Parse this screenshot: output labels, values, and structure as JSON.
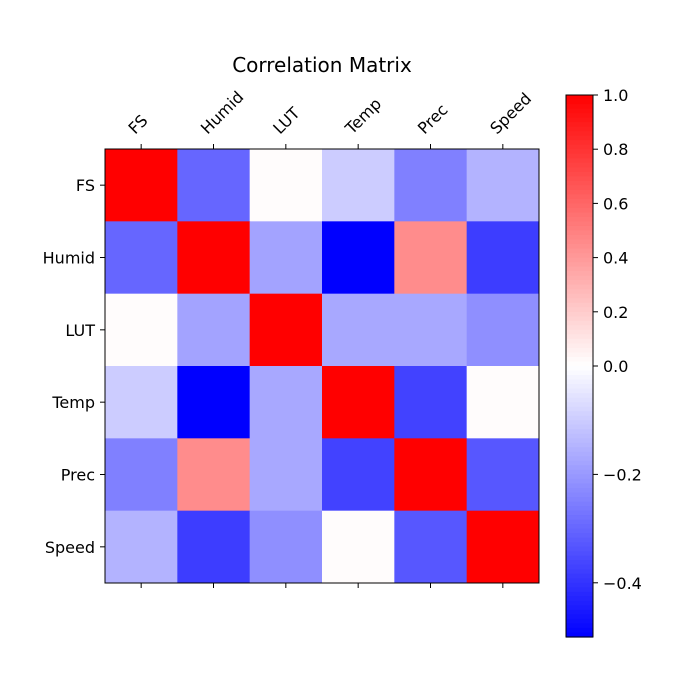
{
  "chart_data": {
    "type": "heatmap",
    "title": "Correlation Matrix",
    "x_labels": [
      "FS",
      "Humid",
      "LUT",
      "Temp",
      "Prec",
      "Speed"
    ],
    "y_labels": [
      "FS",
      "Humid",
      "LUT",
      "Temp",
      "Prec",
      "Speed"
    ],
    "values": [
      [
        1.0,
        -0.3,
        0.01,
        -0.1,
        -0.25,
        -0.15
      ],
      [
        -0.3,
        1.0,
        -0.18,
        -0.5,
        0.45,
        -0.38
      ],
      [
        0.01,
        -0.18,
        1.0,
        -0.17,
        -0.17,
        -0.22
      ],
      [
        -0.1,
        -0.5,
        -0.17,
        1.0,
        -0.37,
        0.01
      ],
      [
        -0.25,
        0.45,
        -0.17,
        -0.37,
        1.0,
        -0.33
      ],
      [
        -0.15,
        -0.38,
        -0.22,
        0.01,
        -0.33,
        1.0
      ]
    ],
    "colormap": "bwr",
    "color_range": [
      -0.5,
      1.0
    ],
    "colorbar_ticks": [
      {
        "value": 1.0,
        "label": "1.0"
      },
      {
        "value": 0.8,
        "label": "0.8"
      },
      {
        "value": 0.6,
        "label": "0.6"
      },
      {
        "value": 0.4,
        "label": "0.4"
      },
      {
        "value": 0.2,
        "label": "0.2"
      },
      {
        "value": 0.0,
        "label": "0.0"
      },
      {
        "value": -0.2,
        "label": "−0.2"
      },
      {
        "value": -0.4,
        "label": "−0.4"
      }
    ],
    "colors": {
      "low": "#0000ff",
      "mid": "#ffffff",
      "high": "#ff0000"
    }
  }
}
